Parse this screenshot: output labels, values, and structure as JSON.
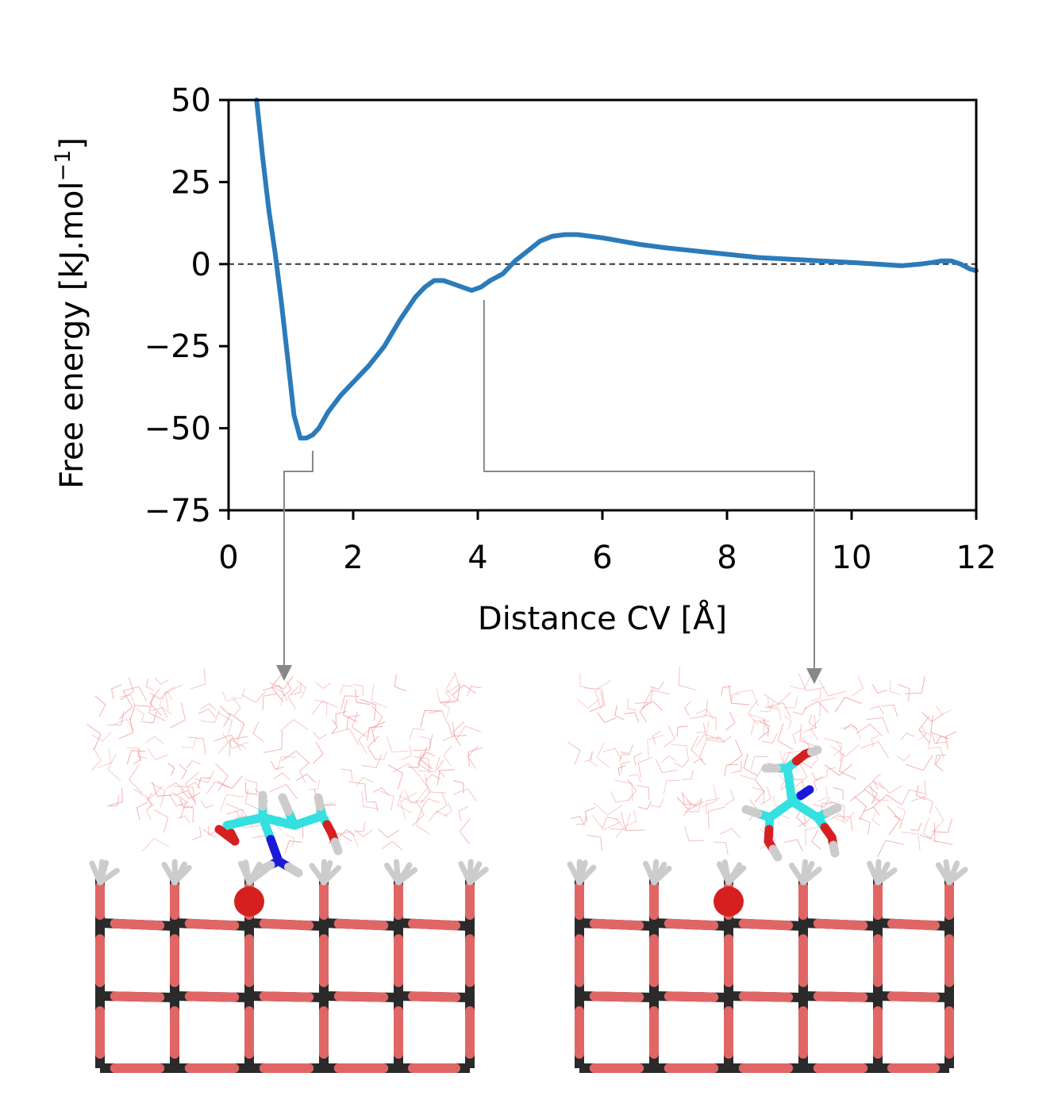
{
  "chart_data": {
    "type": "line",
    "xlabel": "Distance CV [Å]",
    "ylabel": "Free energy [kJ.mol",
    "ylabel_unit_exp": "−1",
    "ylabel_close": "]",
    "xlim": [
      0,
      12
    ],
    "ylim": [
      -75,
      50
    ],
    "xticks": [
      0,
      2,
      4,
      6,
      8,
      10,
      12
    ],
    "xtick_labels": [
      "0",
      "2",
      "4",
      "6",
      "8",
      "10",
      "12"
    ],
    "yticks": [
      50,
      25,
      0,
      -25,
      -50,
      -75
    ],
    "ytick_labels": [
      "50",
      "25",
      "0",
      "−25",
      "−50",
      "−75"
    ],
    "grid": false,
    "reference_line": {
      "y": 0,
      "style": "dashed"
    },
    "series": [
      {
        "color": "#2b7bba",
        "x": [
          0.45,
          0.55,
          0.65,
          0.75,
          0.85,
          0.95,
          1.05,
          1.15,
          1.25,
          1.35,
          1.45,
          1.6,
          1.8,
          2.0,
          2.25,
          2.5,
          2.75,
          3.0,
          3.15,
          3.3,
          3.45,
          3.6,
          3.75,
          3.9,
          4.05,
          4.2,
          4.4,
          4.6,
          4.8,
          5.0,
          5.2,
          5.4,
          5.6,
          5.8,
          6.0,
          6.3,
          6.6,
          7.0,
          7.5,
          8.0,
          8.5,
          9.0,
          9.5,
          10.0,
          10.4,
          10.8,
          11.1,
          11.3,
          11.45,
          11.6,
          11.75,
          11.9,
          12.0
        ],
        "y": [
          50,
          32,
          16,
          3,
          -12,
          -29,
          -46,
          -53,
          -53,
          -52,
          -50,
          -45,
          -40,
          -36,
          -31,
          -25,
          -17,
          -10,
          -7,
          -5,
          -5,
          -6,
          -7,
          -8,
          -7,
          -5,
          -3,
          1,
          4,
          7,
          8.5,
          9,
          9,
          8.5,
          8,
          7,
          6,
          5,
          4,
          3,
          2,
          1.5,
          1,
          0.5,
          0,
          -0.5,
          0,
          0.5,
          1,
          1,
          0,
          -1.5,
          -2
        ]
      }
    ],
    "callouts": [
      {
        "from_x": 1.35,
        "to_panel": "left"
      },
      {
        "from_x": 4.1,
        "to_panel": "right"
      }
    ]
  },
  "panels": {
    "left": {
      "description_icon": "molecule-snapshot-bound"
    },
    "right": {
      "description_icon": "molecule-snapshot-intermediate"
    }
  },
  "colors": {
    "curve": "#2b7bba",
    "callout": "#888888",
    "lattice_bond": "#e06666",
    "lattice_node": "#2a2a2a",
    "carbon": "#35e0e0",
    "oxygen": "#d62020",
    "nitrogen": "#1a1ad6",
    "hydrogen": "#cccccc",
    "water": "#f0a0a0"
  }
}
